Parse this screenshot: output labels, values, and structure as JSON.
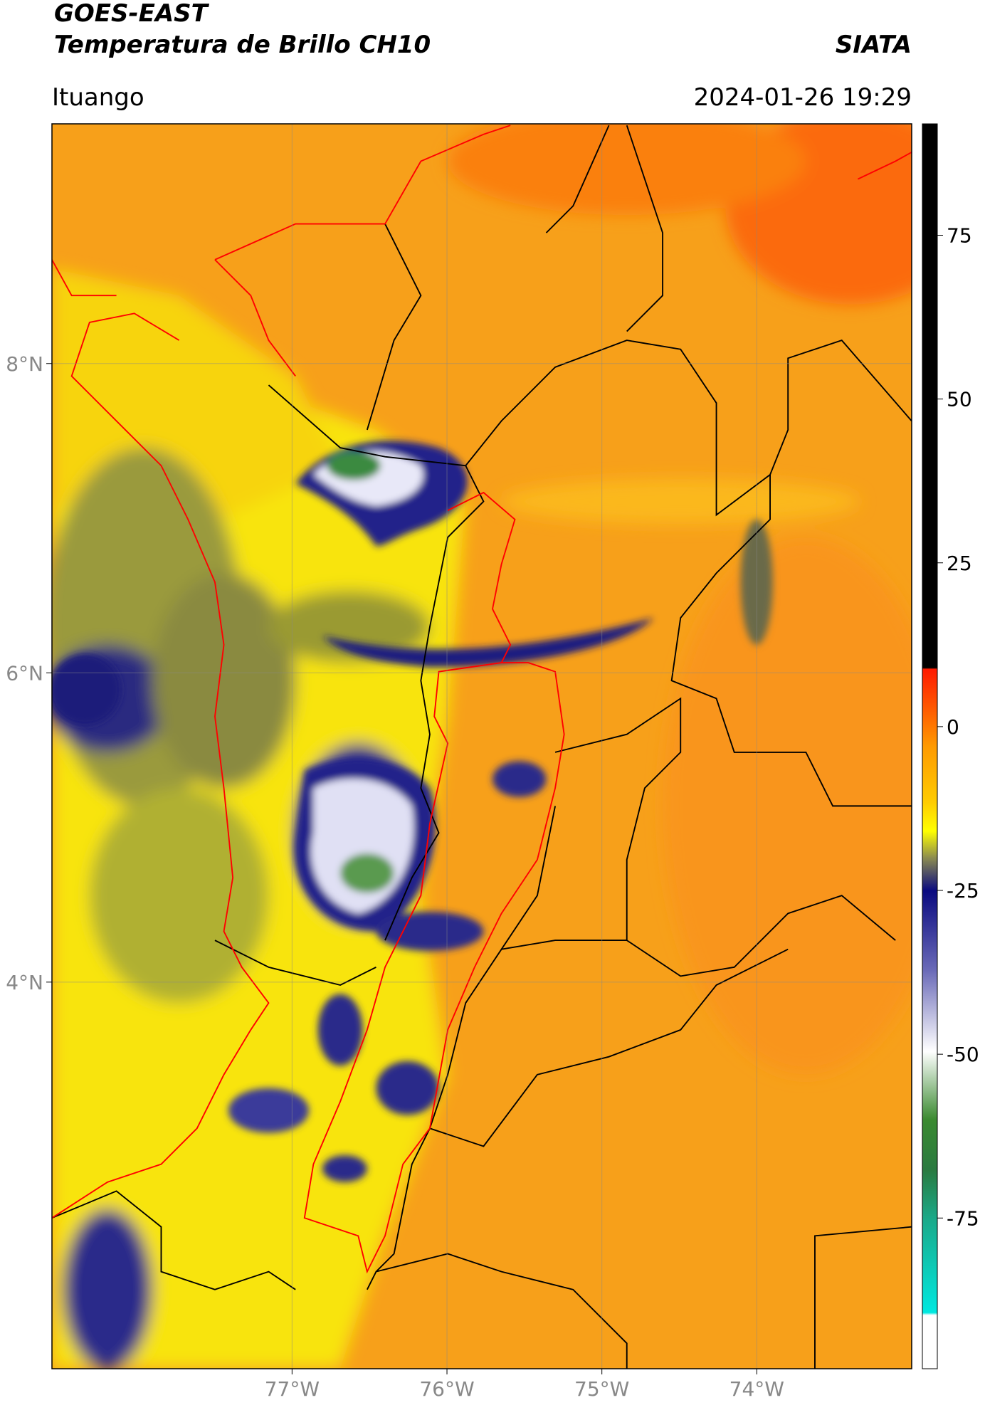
{
  "header": {
    "title_line1": "GOES-EAST",
    "title_line2": "Temperatura de Brillo CH10",
    "organization": "SIATA",
    "location": "Ituango",
    "datetime": "2024-01-26 19:29"
  },
  "map": {
    "xlim": [
      -78.55,
      -73.0
    ],
    "ylim": [
      1.5,
      9.55
    ],
    "grid": true,
    "xticks": [
      {
        "value": -77,
        "label": "77°W"
      },
      {
        "value": -76,
        "label": "76°W"
      },
      {
        "value": -75,
        "label": "75°W"
      },
      {
        "value": -74,
        "label": "74°W"
      }
    ],
    "yticks": [
      {
        "value": 4,
        "label": "4°N"
      },
      {
        "value": 6,
        "label": "6°N"
      },
      {
        "value": 8,
        "label": "8°N"
      }
    ]
  },
  "colorbar": {
    "lim": [
      -98,
      92
    ],
    "ticks": [
      -75,
      -50,
      -25,
      0,
      25,
      50,
      75
    ]
  }
}
